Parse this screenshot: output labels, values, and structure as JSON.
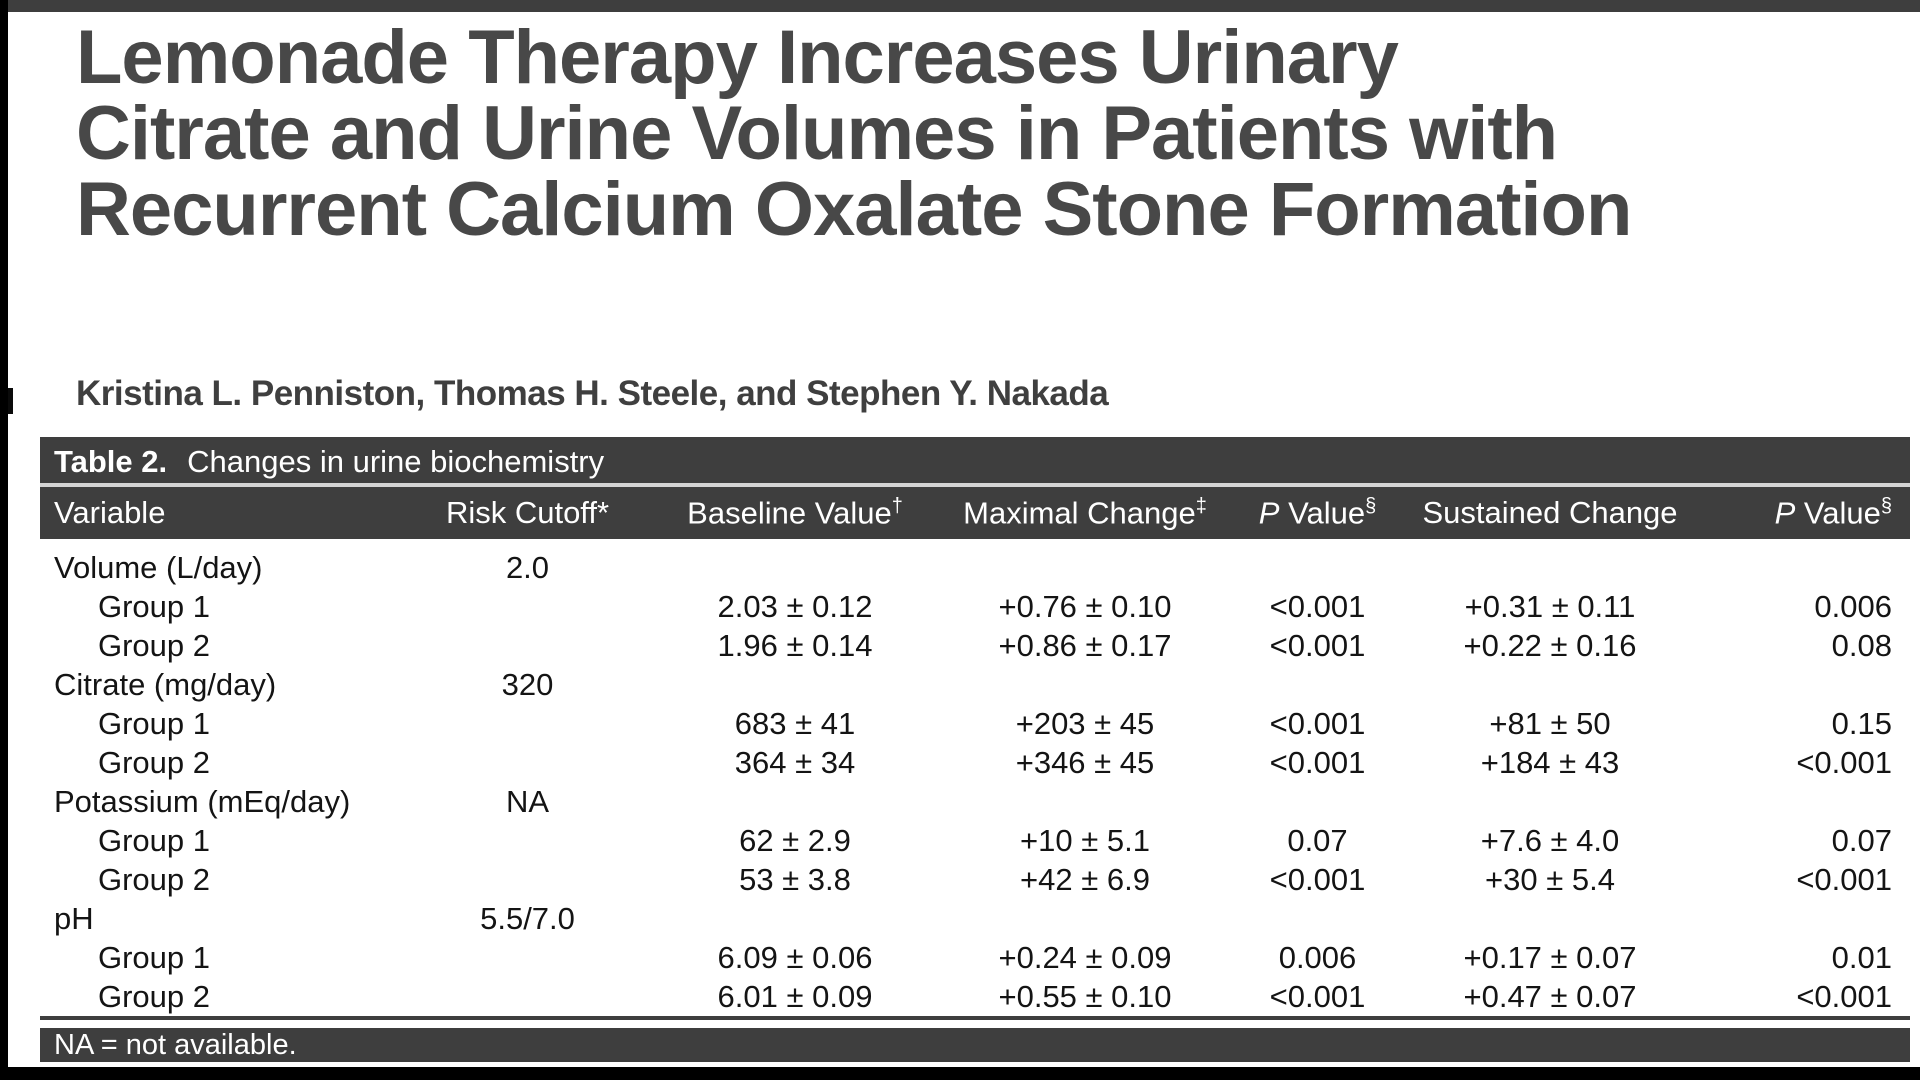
{
  "article": {
    "title_lines": [
      "Lemonade Therapy Increases Urinary",
      "Citrate and Urine Volumes in Patients with",
      "Recurrent Calcium Oxalate Stone Formation"
    ],
    "authors": "Kristina L. Penniston, Thomas H. Steele, and Stephen Y. Nakada"
  },
  "table": {
    "label": "Table 2.",
    "caption": "Changes in urine biochemistry",
    "footnote": "NA = not available.",
    "columns": [
      {
        "label": "Variable",
        "sup": "",
        "italic_lead": false
      },
      {
        "label": "Risk Cutoff*",
        "sup": "",
        "italic_lead": false
      },
      {
        "label": "Baseline Value",
        "sup": "†",
        "italic_lead": false
      },
      {
        "label": "Maximal Change",
        "sup": "‡",
        "italic_lead": false
      },
      {
        "label": "P Value",
        "sup": "§",
        "italic_lead": true
      },
      {
        "label": "Sustained Change",
        "sup": "",
        "italic_lead": false
      },
      {
        "label": "P Value",
        "sup": "§",
        "italic_lead": true
      }
    ],
    "rows": [
      {
        "indent": false,
        "cells": [
          "Volume (L/day)",
          "2.0",
          "",
          "",
          "",
          "",
          ""
        ]
      },
      {
        "indent": true,
        "cells": [
          "Group 1",
          "",
          "2.03 ± 0.12",
          "+0.76 ± 0.10",
          "<0.001",
          "+0.31 ± 0.11",
          "0.006"
        ]
      },
      {
        "indent": true,
        "cells": [
          "Group 2",
          "",
          "1.96 ± 0.14",
          "+0.86 ± 0.17",
          "<0.001",
          "+0.22 ± 0.16",
          "0.08"
        ]
      },
      {
        "indent": false,
        "cells": [
          "Citrate (mg/day)",
          "320",
          "",
          "",
          "",
          "",
          ""
        ]
      },
      {
        "indent": true,
        "cells": [
          "Group 1",
          "",
          "683 ± 41",
          "+203 ± 45",
          "<0.001",
          "+81 ± 50",
          "0.15"
        ]
      },
      {
        "indent": true,
        "cells": [
          "Group 2",
          "",
          "364 ± 34",
          "+346 ± 45",
          "<0.001",
          "+184 ± 43",
          "<0.001"
        ]
      },
      {
        "indent": false,
        "cells": [
          "Potassium (mEq/day)",
          "NA",
          "",
          "",
          "",
          "",
          ""
        ]
      },
      {
        "indent": true,
        "cells": [
          "Group 1",
          "",
          "62 ± 2.9",
          "+10 ± 5.1",
          "0.07",
          "+7.6 ± 4.0",
          "0.07"
        ]
      },
      {
        "indent": true,
        "cells": [
          "Group 2",
          "",
          "53 ± 3.8",
          "+42 ± 6.9",
          "<0.001",
          "+30 ± 5.4",
          "<0.001"
        ]
      },
      {
        "indent": false,
        "cells": [
          "pH",
          "5.5/7.0",
          "",
          "",
          "",
          "",
          ""
        ]
      },
      {
        "indent": true,
        "cells": [
          "Group 1",
          "",
          "6.09 ± 0.06",
          "+0.24 ± 0.09",
          "0.006",
          "+0.17 ± 0.07",
          "0.01"
        ]
      },
      {
        "indent": true,
        "cells": [
          "Group 2",
          "",
          "6.01 ± 0.09",
          "+0.55 ± 0.10",
          "<0.001",
          "+0.47 ± 0.07",
          "<0.001"
        ]
      }
    ]
  },
  "colors": {
    "bar_dark": "#3e3e3e",
    "edge_black": "#000000",
    "title_gray": "#484848",
    "separator_light": "#d4d4d4",
    "body_text": "#141414",
    "header_text": "#ffffff"
  }
}
